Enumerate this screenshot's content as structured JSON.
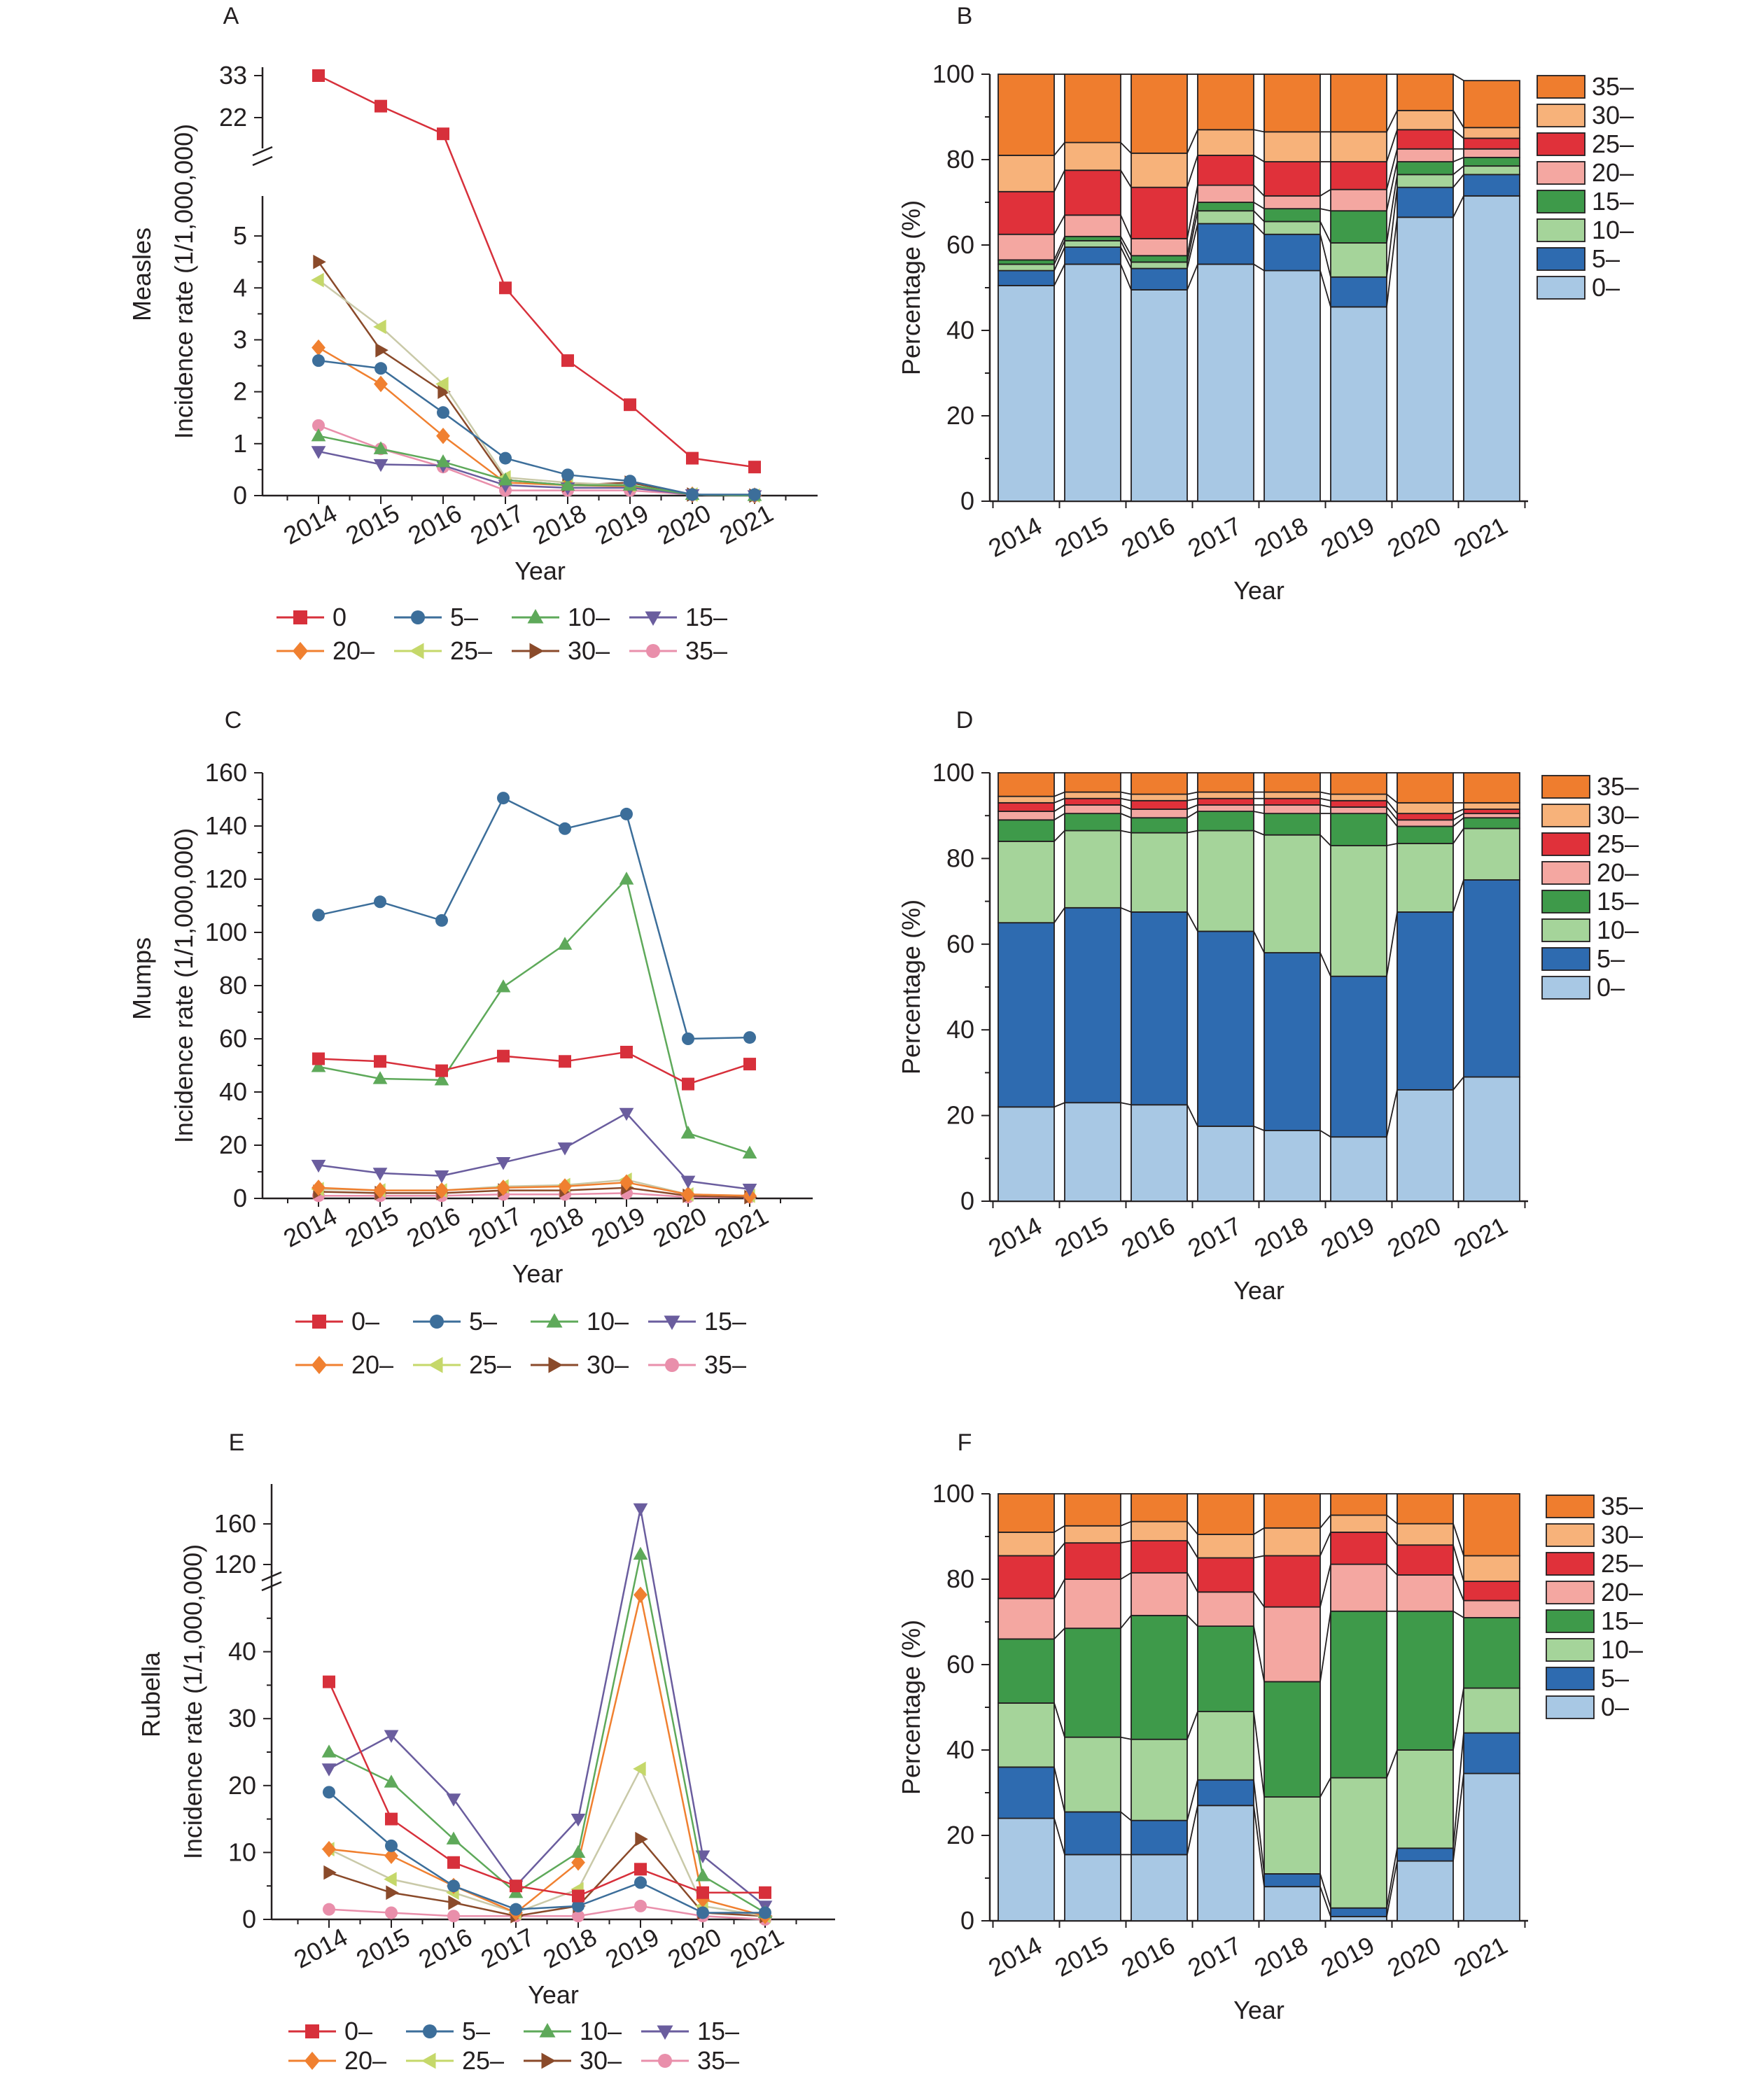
{
  "figure": {
    "years": [
      "2014",
      "2015",
      "2016",
      "2017",
      "2018",
      "2019",
      "2020",
      "2021"
    ],
    "group_colors": {
      "0": "#d7303b",
      "5": "#3c6e9a",
      "10": "#5ea95a",
      "15": "#6a5d9e",
      "20": "#f08030",
      "25": "#c5d86a",
      "30": "#8a4a2a",
      "35": "#e98fab"
    },
    "bar_colors": {
      "0": "#a8c8e4",
      "5": "#2e6bb0",
      "10": "#a5d49a",
      "15": "#3e9a4a",
      "20": "#f4a7a1",
      "25": "#e0313a",
      "30": "#f7b27a",
      "35": "#ef7d2e"
    }
  },
  "chart_data": [
    {
      "panel": "A",
      "type": "line",
      "ylabel": "Incidence rate (1/1,000,000)",
      "row_label": "Measles",
      "xlabel": "Year",
      "x": [
        "2014",
        "2015",
        "2016",
        "2017",
        "2018",
        "2019",
        "2020",
        "2021"
      ],
      "y_break": {
        "lower": [
          0,
          5.5
        ],
        "upper_ticks": [
          "22",
          "33"
        ],
        "lower_ticks": [
          "0",
          "1",
          "2",
          "3",
          "4",
          "5"
        ]
      },
      "legend": [
        "0",
        "5–",
        "10–",
        "15–",
        "20–",
        "25–",
        "30–",
        "35–"
      ],
      "series": [
        {
          "name": "0",
          "group": "0",
          "values": [
            33,
            25,
            13.3,
            4.0,
            2.6,
            1.75,
            0.72,
            0.55
          ]
        },
        {
          "name": "5–",
          "group": "5",
          "values": [
            2.6,
            2.45,
            1.6,
            0.72,
            0.4,
            0.28,
            0.02,
            0.02
          ]
        },
        {
          "name": "10–",
          "group": "10",
          "values": [
            1.15,
            0.9,
            0.65,
            0.3,
            0.2,
            0.2,
            0.02,
            0.0
          ]
        },
        {
          "name": "15–",
          "group": "15",
          "values": [
            0.85,
            0.6,
            0.58,
            0.2,
            0.15,
            0.15,
            0.02,
            0.0
          ]
        },
        {
          "name": "20–",
          "group": "20",
          "values": [
            2.85,
            2.15,
            1.15,
            0.25,
            0.2,
            0.18,
            0.02,
            0.0
          ]
        },
        {
          "name": "25–",
          "group": "25",
          "values": [
            4.15,
            3.25,
            2.15,
            0.35,
            0.25,
            0.2,
            0.02,
            0.0
          ]
        },
        {
          "name": "30–",
          "group": "30",
          "values": [
            4.5,
            2.8,
            2.0,
            0.3,
            0.2,
            0.25,
            0.02,
            0.0
          ]
        },
        {
          "name": "35–",
          "group": "35",
          "values": [
            1.35,
            0.9,
            0.55,
            0.1,
            0.1,
            0.1,
            0.02,
            0.0
          ]
        }
      ]
    },
    {
      "panel": "B",
      "type": "bar",
      "stacked": true,
      "ylabel": "Percentage (%)",
      "xlabel": "Year",
      "ylim": [
        0,
        100
      ],
      "categories": [
        "2014",
        "2015",
        "2016",
        "2017",
        "2018",
        "2019",
        "2020",
        "2021"
      ],
      "legend": [
        "35–",
        "30–",
        "25–",
        "20–",
        "15–",
        "10–",
        "5–",
        "0–"
      ],
      "series": [
        {
          "name": "0–",
          "group": "0",
          "values": [
            50.5,
            55.5,
            49.5,
            55.5,
            54,
            45.5,
            66.5,
            71.5
          ]
        },
        {
          "name": "5–",
          "group": "5",
          "values": [
            3.5,
            4,
            5,
            9.5,
            8.5,
            7,
            7,
            5
          ]
        },
        {
          "name": "10–",
          "group": "10",
          "values": [
            1.5,
            1.5,
            1.5,
            3,
            3,
            8,
            3,
            2
          ]
        },
        {
          "name": "15–",
          "group": "15",
          "values": [
            1,
            1,
            1.5,
            2,
            3,
            7.5,
            3,
            2
          ]
        },
        {
          "name": "20–",
          "group": "20",
          "values": [
            6,
            5,
            4,
            4,
            3,
            5,
            3,
            2
          ]
        },
        {
          "name": "25–",
          "group": "25",
          "values": [
            10,
            10.5,
            12,
            7,
            8,
            6.5,
            4.5,
            2.5
          ]
        },
        {
          "name": "30–",
          "group": "30",
          "values": [
            8.5,
            6.5,
            8,
            6,
            7,
            7,
            4.5,
            2.5
          ]
        },
        {
          "name": "35–",
          "group": "35",
          "values": [
            19,
            16,
            18.5,
            13,
            13.5,
            13.5,
            8.5,
            11
          ]
        }
      ]
    },
    {
      "panel": "C",
      "type": "line",
      "ylabel": "Incidence rate (1/1,000,000)",
      "row_label": "Mumps",
      "xlabel": "Year",
      "x": [
        "2014",
        "2015",
        "2016",
        "2017",
        "2018",
        "2019",
        "2020",
        "2021"
      ],
      "ylim": [
        0,
        160
      ],
      "yticks": [
        0,
        20,
        40,
        60,
        80,
        100,
        120,
        140,
        160
      ],
      "legend": [
        "0–",
        "5–",
        "10–",
        "15–",
        "20–",
        "25–",
        "30–",
        "35–"
      ],
      "series": [
        {
          "name": "0–",
          "group": "0",
          "values": [
            52.5,
            51.5,
            48,
            53.5,
            51.5,
            55,
            43,
            50.5
          ]
        },
        {
          "name": "5–",
          "group": "5",
          "values": [
            106.5,
            111.5,
            104.5,
            150.5,
            139,
            144.5,
            60,
            60.5
          ]
        },
        {
          "name": "10–",
          "group": "10",
          "values": [
            49.5,
            45,
            44.5,
            79.5,
            95.5,
            120,
            24.5,
            17
          ]
        },
        {
          "name": "15–",
          "group": "15",
          "values": [
            12.5,
            9.5,
            8.5,
            13.5,
            19,
            32,
            6.5,
            3.5
          ]
        },
        {
          "name": "20–",
          "group": "20",
          "values": [
            4,
            3,
            3,
            4,
            4.5,
            6,
            1.5,
            1
          ]
        },
        {
          "name": "25–",
          "group": "25",
          "values": [
            3.5,
            3,
            3,
            4.5,
            5,
            7,
            1.5,
            1
          ]
        },
        {
          "name": "30–",
          "group": "30",
          "values": [
            2.5,
            2,
            2,
            3,
            3,
            4,
            1,
            0.5
          ]
        },
        {
          "name": "35–",
          "group": "35",
          "values": [
            1,
            1,
            1,
            1.5,
            1.5,
            2,
            0.5,
            0.5
          ]
        }
      ]
    },
    {
      "panel": "D",
      "type": "bar",
      "stacked": true,
      "ylabel": "Percentage (%)",
      "xlabel": "Year",
      "ylim": [
        0,
        100
      ],
      "categories": [
        "2014",
        "2015",
        "2016",
        "2017",
        "2018",
        "2019",
        "2020",
        "2021"
      ],
      "legend": [
        "35–",
        "30–",
        "25–",
        "20–",
        "15–",
        "10–",
        "5–",
        "0–"
      ],
      "series": [
        {
          "name": "0–",
          "group": "0",
          "values": [
            22,
            23,
            22.5,
            17.5,
            16.5,
            15,
            26,
            29
          ]
        },
        {
          "name": "5–",
          "group": "5",
          "values": [
            43,
            45.5,
            45,
            45.5,
            41.5,
            37.5,
            41.5,
            46
          ]
        },
        {
          "name": "10–",
          "group": "10",
          "values": [
            19,
            18,
            18.5,
            23.5,
            27.5,
            30.5,
            16,
            12
          ]
        },
        {
          "name": "15–",
          "group": "15",
          "values": [
            5,
            4,
            3.5,
            4.5,
            5,
            7.5,
            4,
            2.5
          ]
        },
        {
          "name": "20–",
          "group": "20",
          "values": [
            2,
            2,
            2,
            1.5,
            2,
            1.5,
            1.5,
            1
          ]
        },
        {
          "name": "25–",
          "group": "25",
          "values": [
            2,
            1.5,
            2,
            1.5,
            1.5,
            1.5,
            1.5,
            1
          ]
        },
        {
          "name": "30–",
          "group": "30",
          "values": [
            1.5,
            1.5,
            1.5,
            1.5,
            1.5,
            1.5,
            2.5,
            1.5
          ]
        },
        {
          "name": "35–",
          "group": "35",
          "values": [
            5.5,
            4.5,
            5,
            4.5,
            4.5,
            5,
            7,
            7
          ]
        }
      ]
    },
    {
      "panel": "E",
      "type": "line",
      "ylabel": "Incidence rate (1/1,000,000)",
      "row_label": "Rubella",
      "xlabel": "Year",
      "x": [
        "2014",
        "2015",
        "2016",
        "2017",
        "2018",
        "2019",
        "2020",
        "2021"
      ],
      "y_break": {
        "lower": [
          0,
          50
        ],
        "upper_ticks": [
          "120",
          "160"
        ],
        "lower_ticks": [
          "0",
          "10",
          "20",
          "30",
          "40"
        ]
      },
      "legend": [
        "0–",
        "5–",
        "10–",
        "15–",
        "20–",
        "25–",
        "30–",
        "35–"
      ],
      "series": [
        {
          "name": "0–",
          "group": "0",
          "values": [
            35.5,
            15,
            8.5,
            5,
            3.5,
            7.5,
            4,
            4
          ]
        },
        {
          "name": "5–",
          "group": "5",
          "values": [
            19,
            11,
            5,
            1.5,
            2,
            5.5,
            1,
            1
          ]
        },
        {
          "name": "10–",
          "group": "10",
          "values": [
            25,
            20.5,
            12,
            4,
            10,
            130,
            6.5,
            1
          ]
        },
        {
          "name": "15–",
          "group": "15",
          "values": [
            22.5,
            27.5,
            18,
            5,
            15,
            175,
            9.5,
            2
          ]
        },
        {
          "name": "20–",
          "group": "20",
          "values": [
            10.5,
            9.5,
            5,
            1,
            8.5,
            48.5,
            3,
            0.5
          ]
        },
        {
          "name": "25–",
          "group": "25",
          "values": [
            10.5,
            6,
            4,
            1,
            4.5,
            22.5,
            2,
            0.5
          ]
        },
        {
          "name": "30–",
          "group": "30",
          "values": [
            7,
            4,
            2.5,
            0.5,
            2,
            12,
            1,
            0.5
          ]
        },
        {
          "name": "35–",
          "group": "35",
          "values": [
            1.5,
            1,
            0.5,
            0.5,
            0.5,
            2,
            0.5,
            0
          ]
        }
      ]
    },
    {
      "panel": "F",
      "type": "bar",
      "stacked": true,
      "ylabel": "Percentage (%)",
      "xlabel": "Year",
      "ylim": [
        0,
        100
      ],
      "categories": [
        "2014",
        "2015",
        "2016",
        "2017",
        "2018",
        "2019",
        "2020",
        "2021"
      ],
      "legend": [
        "35–",
        "30–",
        "25–",
        "20–",
        "15–",
        "10–",
        "5–",
        "0–"
      ],
      "series": [
        {
          "name": "0–",
          "group": "0",
          "values": [
            24,
            15.5,
            15.5,
            27,
            8,
            1,
            14,
            34.5
          ]
        },
        {
          "name": "5–",
          "group": "5",
          "values": [
            12,
            10,
            8,
            6,
            3,
            2,
            3,
            9.5
          ]
        },
        {
          "name": "10–",
          "group": "10",
          "values": [
            15,
            17.5,
            19,
            16,
            18,
            30.5,
            23,
            10.5
          ]
        },
        {
          "name": "15–",
          "group": "15",
          "values": [
            15,
            25.5,
            29,
            20,
            27,
            39,
            32.5,
            16.5
          ]
        },
        {
          "name": "20–",
          "group": "20",
          "values": [
            9.5,
            11.5,
            10,
            8,
            17.5,
            11,
            8.5,
            4
          ]
        },
        {
          "name": "25–",
          "group": "25",
          "values": [
            10,
            8.5,
            7.5,
            8,
            12,
            7.5,
            7,
            4.5
          ]
        },
        {
          "name": "30–",
          "group": "30",
          "values": [
            5.5,
            4,
            4.5,
            5.5,
            6.5,
            4,
            5,
            6
          ]
        },
        {
          "name": "35–",
          "group": "35",
          "values": [
            9,
            7.5,
            6.5,
            9.5,
            8,
            5,
            7,
            14.5
          ]
        }
      ]
    }
  ]
}
